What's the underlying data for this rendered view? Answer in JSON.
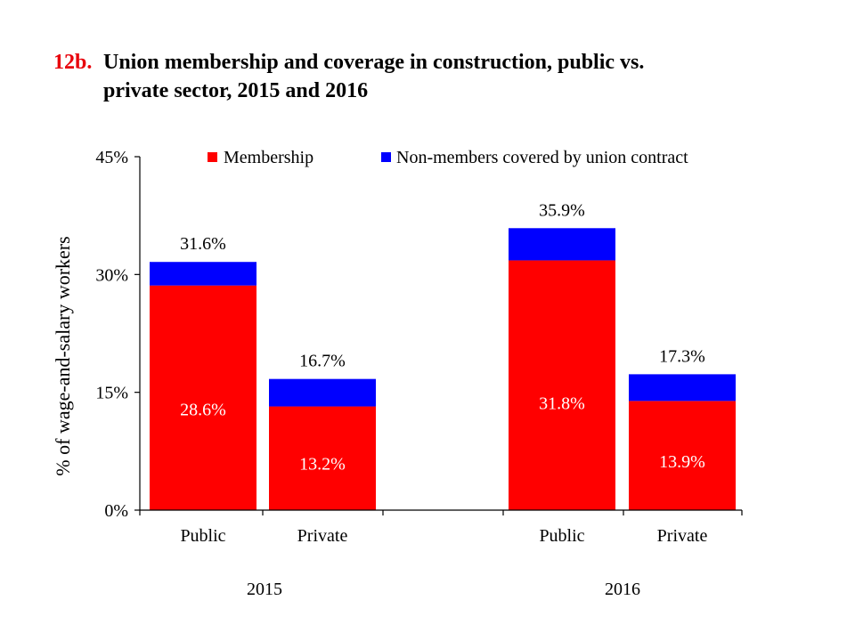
{
  "title": {
    "number": "12b.",
    "line1": "Union membership and coverage in construction, public vs.",
    "line2": "private sector, 2015 and 2016"
  },
  "colors": {
    "membership": "#ff0000",
    "non_members": "#0000ff",
    "title_number": "#e8000b"
  },
  "chart_data": {
    "type": "bar",
    "stacked": true,
    "groups": [
      "2015",
      "2016"
    ],
    "categories": [
      "Public",
      "Private",
      "Public",
      "Private"
    ],
    "category_group": [
      "2015",
      "2015",
      "2016",
      "2016"
    ],
    "series": [
      {
        "name": "Membership",
        "values": [
          28.6,
          13.2,
          31.8,
          13.9
        ]
      },
      {
        "name": "Non-members covered by union contract",
        "values": [
          3.0,
          3.5,
          4.1,
          3.4
        ]
      }
    ],
    "segment_labels": [
      "28.6%",
      "13.2%",
      "31.8%",
      "13.9%"
    ],
    "total_labels": [
      "31.6%",
      "16.7%",
      "35.9%",
      "17.3%"
    ],
    "totals": [
      31.6,
      16.7,
      35.9,
      17.3
    ],
    "ylabel": "% of wage-and-salary workers",
    "ylim": [
      0,
      45
    ],
    "yticks": [
      0,
      15,
      30,
      45
    ],
    "ytick_labels": [
      "0%",
      "15%",
      "30%",
      "45%"
    ],
    "legend_position": "top",
    "grid": false
  }
}
